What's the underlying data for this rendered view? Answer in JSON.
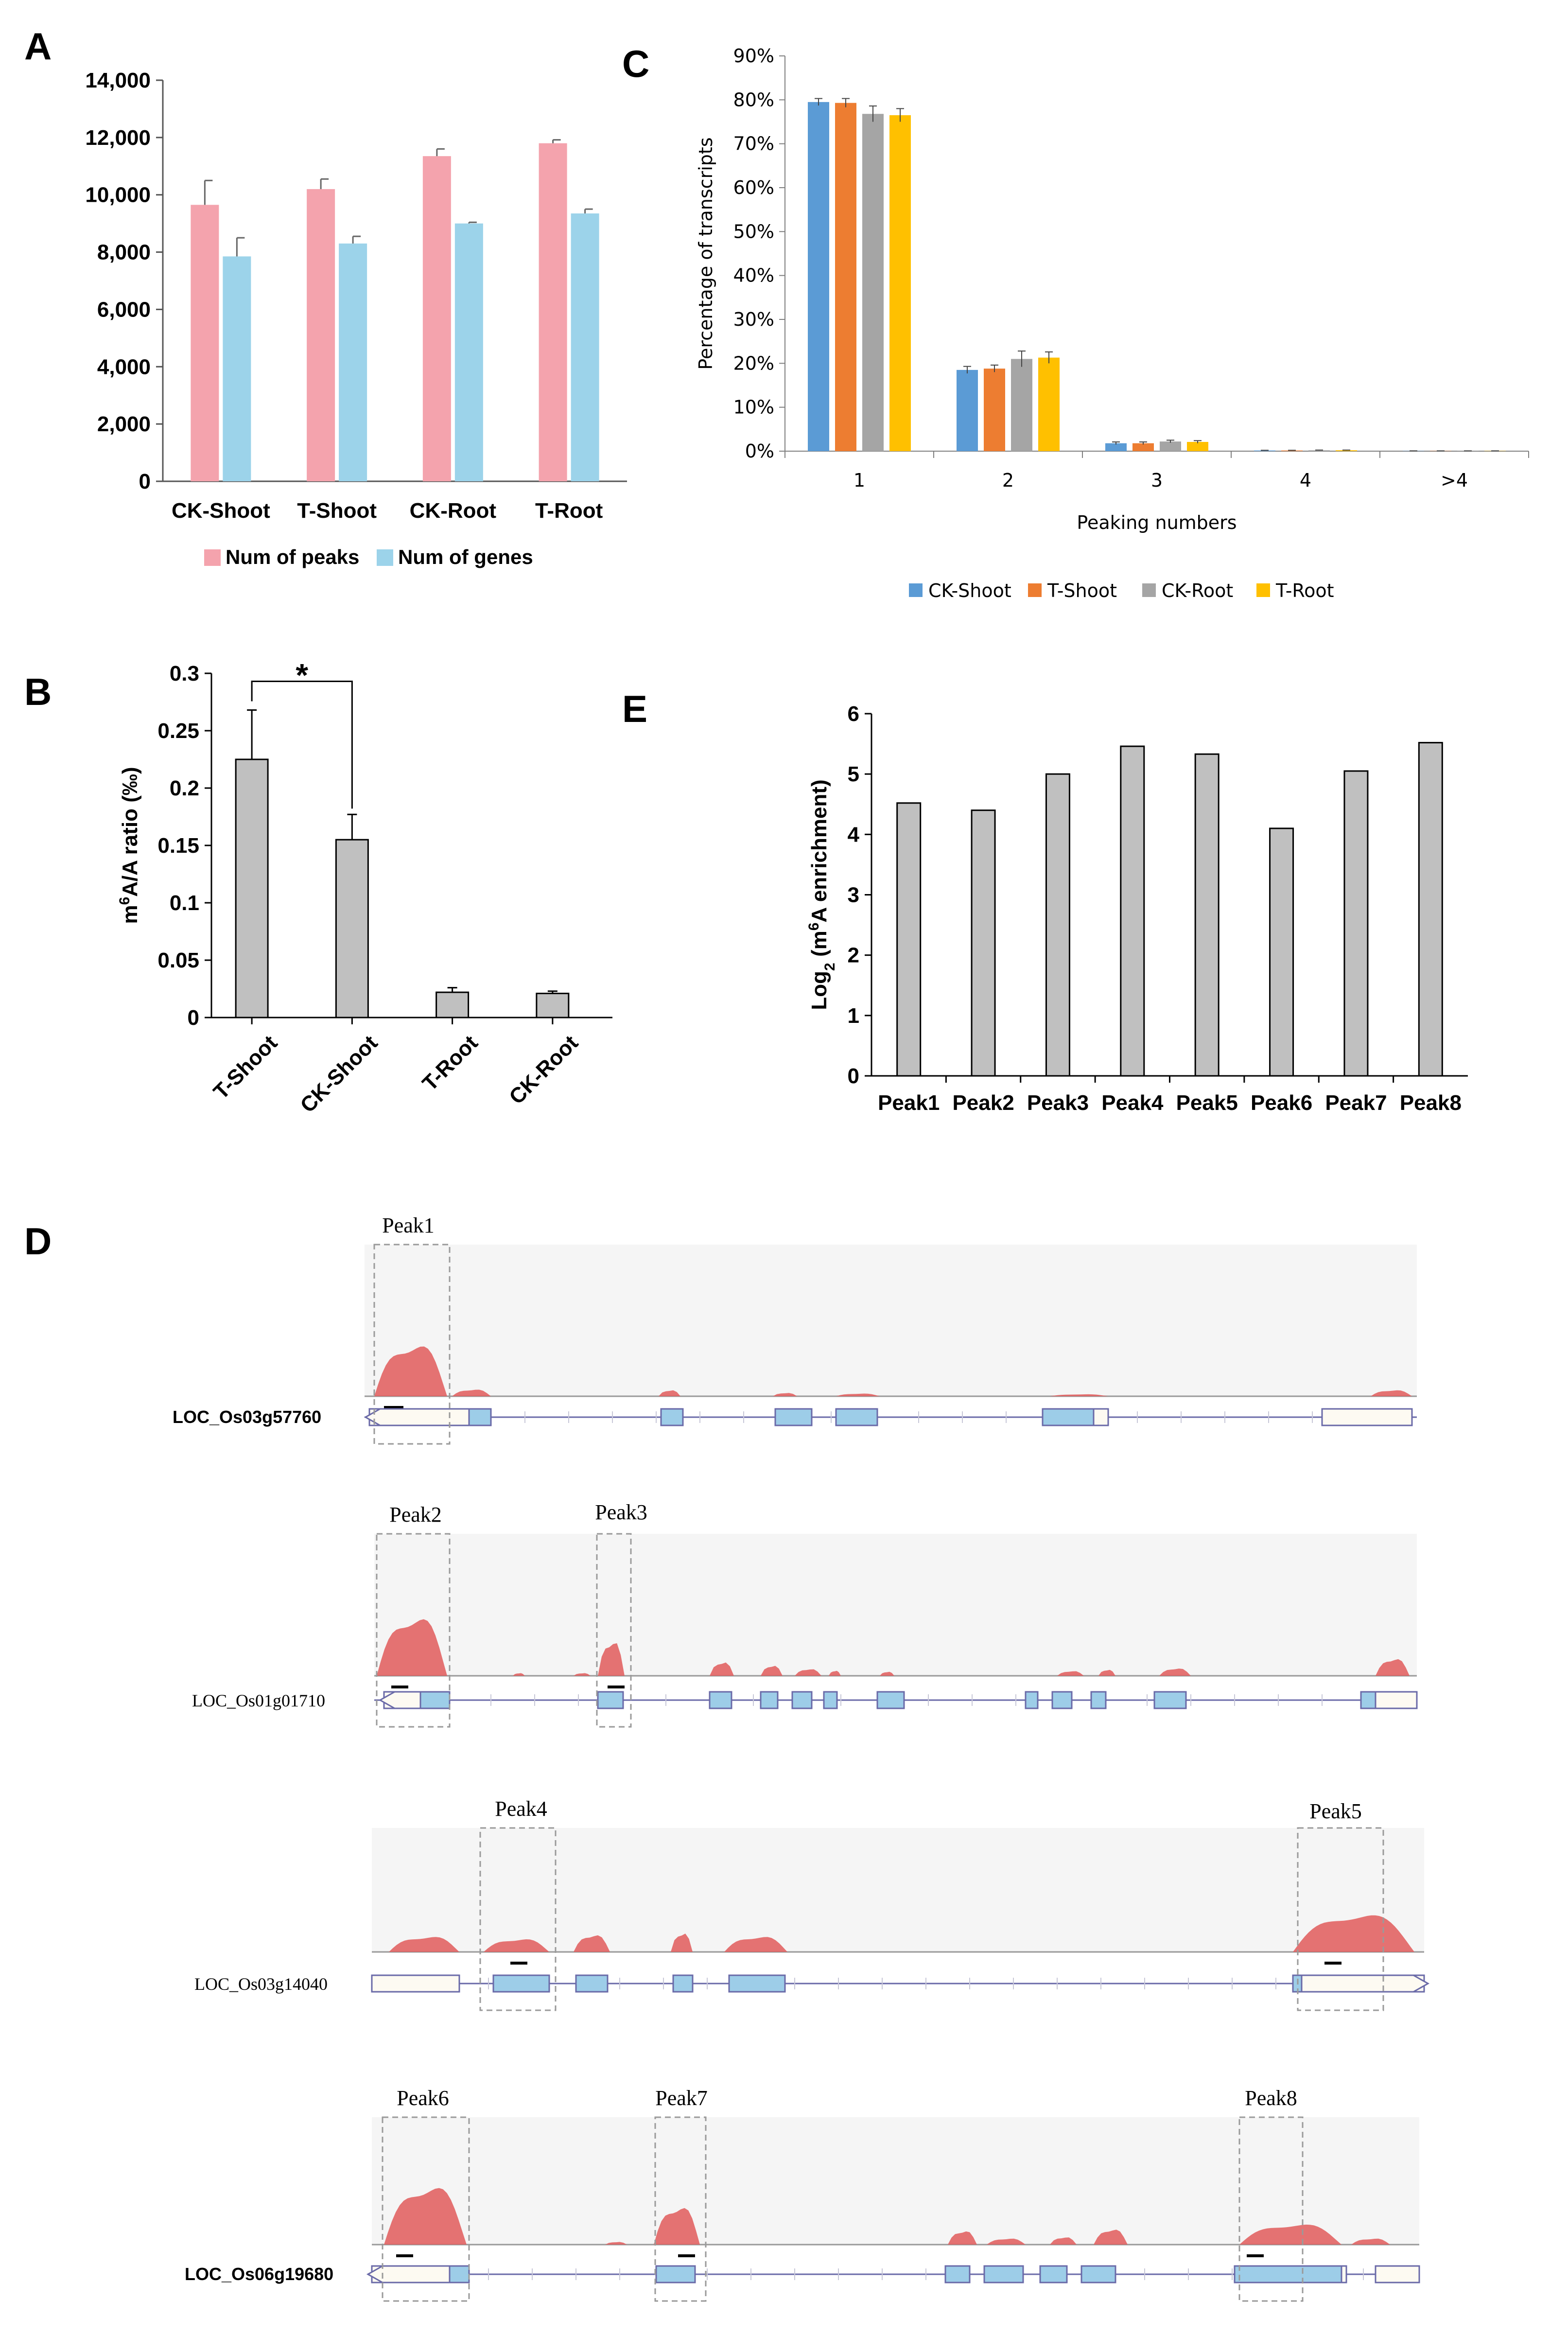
{
  "chart_data": [
    {
      "id": "A",
      "type": "bar",
      "panel_label": "A",
      "categories": [
        "CK-Shoot",
        "T-Shoot",
        "CK-Root",
        "T-Root"
      ],
      "series": [
        {
          "name": "Num of peaks",
          "color": "#f4a3ad",
          "values": [
            9650,
            10200,
            11350,
            11800
          ],
          "errors": [
            850,
            350,
            250,
            120
          ]
        },
        {
          "name": "Num of genes",
          "color": "#9cd3ea",
          "values": [
            7850,
            8300,
            9000,
            9350
          ],
          "errors": [
            650,
            250,
            40,
            150
          ]
        }
      ],
      "ylim": [
        0,
        14000
      ],
      "yticks": [
        "0",
        "2,000",
        "4,000",
        "6,000",
        "8,000",
        "10,000",
        "12,000",
        "14,000"
      ],
      "ytick_values": [
        0,
        2000,
        4000,
        6000,
        8000,
        10000,
        12000,
        14000
      ],
      "legend_position": "bottom"
    },
    {
      "id": "B",
      "type": "bar",
      "panel_label": "B",
      "categories": [
        "T-Shoot",
        "CK-Shoot",
        "T-Root",
        "CK-Root"
      ],
      "values": [
        0.225,
        0.155,
        0.022,
        0.021
      ],
      "errors": [
        0.043,
        0.022,
        0.004,
        0.002
      ],
      "bar_color": "#c0c0c0",
      "ylabel_parts": [
        "m",
        "6",
        "A/A ratio (‰)"
      ],
      "ylim": [
        0,
        0.3
      ],
      "yticks": [
        "0",
        "0.05",
        "0.1",
        "0.15",
        "0.2",
        "0.25",
        "0.3"
      ],
      "ytick_values": [
        0,
        0.05,
        0.1,
        0.15,
        0.2,
        0.25,
        0.3
      ],
      "significance": {
        "from": "T-Shoot",
        "to": "CK-Shoot",
        "label": "*"
      }
    },
    {
      "id": "C",
      "type": "bar",
      "panel_label": "C",
      "categories": [
        "1",
        "2",
        "3",
        "4",
        ">4"
      ],
      "series": [
        {
          "name": "CK-Shoot",
          "color": "#5b9bd5",
          "values": [
            79.5,
            18.5,
            1.8,
            0.15,
            0.05
          ],
          "errors": [
            0.8,
            0.8,
            0.3,
            0.05,
            0.02
          ]
        },
        {
          "name": "T-Shoot",
          "color": "#ed7d31",
          "values": [
            79.3,
            18.8,
            1.8,
            0.15,
            0.05
          ],
          "errors": [
            1.0,
            0.8,
            0.3,
            0.05,
            0.02
          ]
        },
        {
          "name": "CK-Root",
          "color": "#a5a5a5",
          "values": [
            76.8,
            21.0,
            2.2,
            0.2,
            0.05
          ],
          "errors": [
            1.8,
            1.8,
            0.3,
            0.05,
            0.02
          ]
        },
        {
          "name": "T-Root",
          "color": "#ffc000",
          "values": [
            76.5,
            21.3,
            2.1,
            0.2,
            0.05
          ],
          "errors": [
            1.5,
            1.3,
            0.3,
            0.05,
            0.02
          ]
        }
      ],
      "xlabel": "Peaking numbers",
      "ylabel": "Percentage of transcripts",
      "ylim": [
        0,
        90
      ],
      "yticks": [
        "0%",
        "10%",
        "20%",
        "30%",
        "40%",
        "50%",
        "60%",
        "70%",
        "80%",
        "90%"
      ],
      "ytick_values": [
        0,
        10,
        20,
        30,
        40,
        50,
        60,
        70,
        80,
        90
      ],
      "legend_position": "bottom"
    },
    {
      "id": "E",
      "type": "bar",
      "panel_label": "E",
      "categories": [
        "Peak1",
        "Peak2",
        "Peak3",
        "Peak4",
        "Peak5",
        "Peak6",
        "Peak7",
        "Peak8"
      ],
      "values": [
        4.52,
        4.4,
        5.0,
        5.46,
        5.33,
        4.1,
        5.05,
        5.52
      ],
      "bar_color": "#c0c0c0",
      "ylabel_parts": [
        "Log",
        "2",
        " (m",
        "6",
        "A enrichment)"
      ],
      "ylim": [
        0,
        6
      ],
      "yticks": [
        "0",
        "1",
        "2",
        "3",
        "4",
        "5",
        "6"
      ],
      "ytick_values": [
        0,
        1,
        2,
        3,
        4,
        5,
        6
      ]
    }
  ],
  "panel_d": {
    "panel_label": "D",
    "coverage_color": "#e05a5a",
    "exon_color": "#9dcde8",
    "tracks": [
      {
        "gene": "LOC_Os03g57760",
        "label_bold": true,
        "peaks": [
          "Peak1"
        ]
      },
      {
        "gene": "LOC_Os01g01710",
        "label_bold": false,
        "peaks": [
          "Peak2",
          "Peak3"
        ]
      },
      {
        "gene": "LOC_Os03g14040",
        "label_bold": false,
        "peaks": [
          "Peak4",
          "Peak5"
        ]
      },
      {
        "gene": "LOC_Os06g19680",
        "label_bold": true,
        "peaks": [
          "Peak6",
          "Peak7",
          "Peak8"
        ]
      }
    ]
  }
}
